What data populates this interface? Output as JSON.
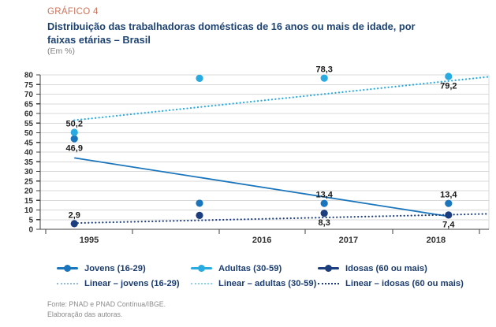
{
  "header": {
    "kicker": "GRÁFICO 4",
    "title_line1": "Distribuição das trabalhadoras domésticas de 16 anos ou mais de idade, por",
    "title_line2": "faixas etárias – Brasil",
    "unit": "(Em %)"
  },
  "chart_data": {
    "type": "scatter",
    "title": "Distribuição das trabalhadoras domésticas de 16 anos ou mais de idade, por faixas etárias – Brasil",
    "unit": "Em %",
    "x_categories": [
      "1995",
      "2016",
      "2017",
      "2018"
    ],
    "ylim": [
      0,
      80
    ],
    "y_tick_step": 5,
    "grid": true,
    "legend_position": "bottom",
    "series": [
      {
        "name": "Jovens (16-29)",
        "color": "#1b75bc",
        "values": [
          46.9,
          13.5,
          13.4,
          13.4
        ],
        "point_labels": [
          "46,9",
          null,
          "13,4",
          "13,4"
        ],
        "label_position": [
          "below",
          null,
          "above",
          "above"
        ]
      },
      {
        "name": "Adultas (30-59)",
        "color": "#29abe2",
        "values": [
          50.2,
          78.2,
          78.3,
          79.2
        ],
        "point_labels": [
          "50,2",
          null,
          "78,3",
          "79,2"
        ],
        "label_position": [
          "above",
          null,
          "above",
          "below"
        ]
      },
      {
        "name": "Idosas (60 ou mais)",
        "color": "#1c3e7e",
        "values": [
          2.9,
          7.2,
          8.3,
          7.4
        ],
        "point_labels": [
          "2,9",
          null,
          "8,3",
          "7,4"
        ],
        "label_position": [
          "above",
          null,
          "below",
          "below"
        ]
      }
    ],
    "trend_lines": [
      {
        "name": "Linear – jovens (16-29)",
        "style": "solid",
        "color": "#1b75bc",
        "legend_swatch_color": "#95badd",
        "start_value": 37,
        "end_value": 6.7,
        "full_width": false
      },
      {
        "name": "Linear – adultas (30-59)",
        "style": "dotted",
        "color": "#29abe2",
        "legend_swatch_color": "#8ed2f2",
        "start_value": 56.5,
        "end_value": 79,
        "full_width": true
      },
      {
        "name": "Linear – idosas (60 ou mais)",
        "style": "dotted",
        "color": "#1c3e7e",
        "legend_swatch_color": "#1c3e7e",
        "start_value": 3.2,
        "end_value": 8,
        "full_width": true
      }
    ]
  },
  "footer": {
    "line1": "Fonte: PNAD e PNAD Contínua/IBGE.",
    "line2": "Elaboração das autoras."
  },
  "colors": {
    "kicker": "#cd7459",
    "title": "#1d4373",
    "unit_text": "#808080",
    "axis_text": "#333333",
    "grid": "#d9d9d9",
    "axis_line": "#404040",
    "data_label": "#1a1a1a",
    "legend_text": "#1b3c6e",
    "footer_text": "#8c8c8c"
  }
}
